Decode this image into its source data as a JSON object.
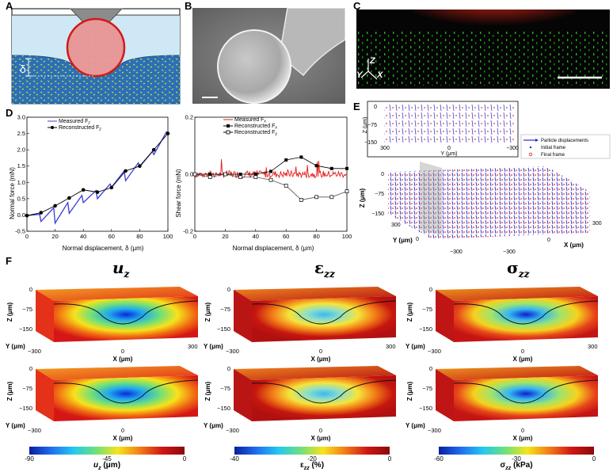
{
  "panel_labels": {
    "A": "A",
    "B": "B",
    "C": "C",
    "D": "D",
    "E": "E",
    "F": "F"
  },
  "panel_a": {
    "delta_symbol": "δ",
    "colors": {
      "probe": "#8c8c8c",
      "water": "#cfe8f5",
      "gel": "#2c6fb6",
      "sphere": "#e89a9a",
      "sphere_edge": "#d01a1a",
      "beads": "#c8e23a"
    }
  },
  "panel_c": {
    "axis_z": "Z",
    "axis_y": "Y",
    "axis_x": "X"
  },
  "panel_e": {
    "inset_x_label": "Y (μm)",
    "inset_y_label": "Z (μm)",
    "inset_x_ticks": [
      "300",
      "0",
      "−300"
    ],
    "inset_y_ticks": [
      "0",
      "−75",
      "−150"
    ],
    "legend": [
      "Particle displacements",
      "Initial frame",
      "Final frame"
    ],
    "z_label": "Z (μm)",
    "y_label": "Y (μm)",
    "x_label": "X (μm)",
    "z_ticks": [
      "0",
      "−75",
      "−150"
    ],
    "y_ticks": [
      "300",
      "0",
      "−300"
    ],
    "x_ticks": [
      "300",
      "0",
      "−300"
    ]
  },
  "panel_f": {
    "titles": [
      "u",
      "ε",
      "σ"
    ],
    "title_sub": [
      "z",
      "zz",
      "zz"
    ],
    "z_label": "Z (μm)",
    "y_label": "Y (μm)",
    "x_label": "X (μm)",
    "z_ticks": [
      "0",
      "−75",
      "−150"
    ],
    "y_tick": "−300",
    "x_tick_mid": "0",
    "x_tick_right": "300",
    "colorbars": [
      {
        "label": "u",
        "sub": "z",
        "unit": " (μm)",
        "min": "-90",
        "mid": "-45",
        "max": "0"
      },
      {
        "label": "ε",
        "sub": "zz",
        "unit": " (%)",
        "min": "-40",
        "mid": "-20",
        "max": "0"
      },
      {
        "label": "σ",
        "sub": "zz",
        "unit": " (kPa)",
        "min": "-60",
        "mid": "-30",
        "max": "0"
      }
    ]
  },
  "chart_data": [
    {
      "type": "line",
      "panel": "D-left",
      "xlabel": "Normal displacement, δ (μm)",
      "ylabel": "Normal force (mN)",
      "xlim": [
        0,
        100
      ],
      "ylim": [
        -0.5,
        3
      ],
      "xticks": [
        "0",
        "20",
        "40",
        "60",
        "80",
        "100"
      ],
      "yticks": [
        "-0.5",
        "0.0",
        "0.5",
        "1.0",
        "1.5",
        "2.0",
        "2.5",
        "3.0"
      ],
      "legend": [
        "Measured F",
        "Reconstructed F"
      ],
      "legend_sub": [
        "z",
        "z"
      ],
      "series": [
        {
          "name": "Measured F_z",
          "x": [
            0,
            9,
            10,
            19,
            20,
            29,
            30,
            39,
            40,
            49,
            50,
            59,
            60,
            69,
            70,
            79,
            80,
            89,
            90,
            99,
            100
          ],
          "y": [
            -0.02,
            0.02,
            -0.2,
            0.22,
            -0.25,
            0.38,
            0.05,
            0.6,
            0.38,
            0.75,
            0.5,
            0.95,
            0.85,
            1.35,
            1.05,
            1.6,
            1.48,
            1.95,
            1.85,
            2.55,
            2.5
          ]
        },
        {
          "name": "Reconstructed F_z",
          "x": [
            0,
            10,
            20,
            30,
            40,
            50,
            60,
            70,
            80,
            90,
            100
          ],
          "y": [
            -0.02,
            0.07,
            0.28,
            0.52,
            0.77,
            0.7,
            0.84,
            1.35,
            1.5,
            2.0,
            2.5
          ]
        }
      ]
    },
    {
      "type": "line",
      "panel": "D-right",
      "xlabel": "Normal displacement, δ (μm)",
      "ylabel": "Shear force (mN)",
      "xlim": [
        0,
        100
      ],
      "ylim": [
        -0.2,
        0.2
      ],
      "xticks": [
        "0",
        "20",
        "40",
        "60",
        "80",
        "100"
      ],
      "yticks": [
        "-0.2",
        "0.0",
        "0.2"
      ],
      "legend": [
        "Measured F",
        "Reconstructed F",
        "Reconstructed F"
      ],
      "legend_sub": [
        "x",
        "x",
        "y"
      ],
      "series": [
        {
          "name": "Measured F_x",
          "x": [
            0,
            100
          ],
          "y": [
            0.0,
            0.0
          ]
        },
        {
          "name": "Reconstructed F_x",
          "x": [
            0,
            10,
            20,
            30,
            40,
            50,
            60,
            70,
            80,
            90,
            100
          ],
          "y": [
            0.0,
            0.0,
            0.0,
            0.0,
            0.0,
            0.01,
            0.05,
            0.06,
            0.03,
            0.02,
            0.02
          ]
        },
        {
          "name": "Reconstructed F_y",
          "x": [
            0,
            10,
            20,
            30,
            40,
            50,
            60,
            70,
            80,
            90,
            100
          ],
          "y": [
            0.0,
            -0.01,
            0.0,
            -0.01,
            -0.01,
            -0.02,
            -0.04,
            -0.09,
            -0.08,
            -0.08,
            -0.06
          ]
        }
      ]
    }
  ]
}
